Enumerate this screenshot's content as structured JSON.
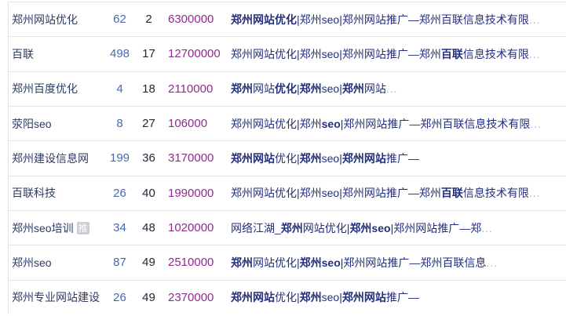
{
  "badge_label": "推",
  "colors": {
    "keyword_text": "#2e3c63",
    "metric1_blue": "#4868b1",
    "metric2_dark": "#26263c",
    "metric3_purple": "#8f2b8f",
    "title_link_navy": "#232f7d",
    "ellipsis_dim": "#aab1c5",
    "separator": "#e3e3e7",
    "badge_bg": "#cbced4"
  },
  "rows": [
    {
      "keyword": "郑州网站优化",
      "badge": false,
      "m1": "62",
      "m2": "2",
      "m3": "6300000",
      "title": [
        {
          "t": "郑州网站优化",
          "s": "b"
        },
        {
          "t": "|郑州seo|郑州网站推广—郑州百联信息技术有限",
          "s": "n"
        },
        {
          "t": "...",
          "s": "d"
        }
      ]
    },
    {
      "keyword": "百联",
      "badge": false,
      "m1": "498",
      "m2": "17",
      "m3": "12700000",
      "title": [
        {
          "t": "郑州网站优化|郑州seo|郑州网站推广—郑州",
          "s": "n"
        },
        {
          "t": "百联",
          "s": "b"
        },
        {
          "t": "信息技术有限",
          "s": "n"
        },
        {
          "t": "...",
          "s": "d"
        }
      ]
    },
    {
      "keyword": "郑州百度优化",
      "badge": false,
      "m1": "4",
      "m2": "18",
      "m3": "2110000",
      "title": [
        {
          "t": "郑州",
          "s": "b"
        },
        {
          "t": "网站",
          "s": "n"
        },
        {
          "t": "优化",
          "s": "b"
        },
        {
          "t": "|",
          "s": "n"
        },
        {
          "t": "郑州",
          "s": "b"
        },
        {
          "t": "seo|",
          "s": "n"
        },
        {
          "t": "郑州",
          "s": "b"
        },
        {
          "t": "网站",
          "s": "n"
        },
        {
          "t": "...",
          "s": "d"
        }
      ]
    },
    {
      "keyword": "荥阳seo",
      "badge": false,
      "m1": "8",
      "m2": "27",
      "m3": "106000",
      "title": [
        {
          "t": "郑州网站优化|郑州",
          "s": "n"
        },
        {
          "t": "seo",
          "s": "b"
        },
        {
          "t": "|郑州网站推广—郑州百联信息技术有限",
          "s": "n"
        },
        {
          "t": "...",
          "s": "d"
        }
      ]
    },
    {
      "keyword": "郑州建设信息网",
      "badge": false,
      "m1": "199",
      "m2": "36",
      "m3": "3170000",
      "title": [
        {
          "t": "郑州网站",
          "s": "b"
        },
        {
          "t": "优化|",
          "s": "n"
        },
        {
          "t": "郑州",
          "s": "b"
        },
        {
          "t": "seo|",
          "s": "n"
        },
        {
          "t": "郑州网站",
          "s": "b"
        },
        {
          "t": "推广—",
          "s": "n"
        }
      ]
    },
    {
      "keyword": "百联科技",
      "badge": false,
      "m1": "26",
      "m2": "40",
      "m3": "1990000",
      "title": [
        {
          "t": "郑州网站优化|郑州seo|郑州网站推广—郑州",
          "s": "n"
        },
        {
          "t": "百联",
          "s": "b"
        },
        {
          "t": "信息技术有限",
          "s": "n"
        },
        {
          "t": "...",
          "s": "d"
        }
      ]
    },
    {
      "keyword": "郑州seo培训",
      "badge": true,
      "m1": "34",
      "m2": "48",
      "m3": "1020000",
      "title": [
        {
          "t": "网络江湖_",
          "s": "n"
        },
        {
          "t": "郑州",
          "s": "b"
        },
        {
          "t": "网站优化|",
          "s": "n"
        },
        {
          "t": "郑州seo",
          "s": "b"
        },
        {
          "t": "|郑州网站推广—郑",
          "s": "n"
        },
        {
          "t": "...",
          "s": "d"
        }
      ]
    },
    {
      "keyword": "郑州seo",
      "badge": false,
      "m1": "87",
      "m2": "49",
      "m3": "2510000",
      "title": [
        {
          "t": "郑州",
          "s": "b"
        },
        {
          "t": "网站优化|",
          "s": "n"
        },
        {
          "t": "郑州seo",
          "s": "b"
        },
        {
          "t": "|郑州网站推广—郑州百联信息",
          "s": "n"
        },
        {
          "t": "...",
          "s": "d"
        }
      ]
    },
    {
      "keyword": "郑州专业网站建设",
      "badge": false,
      "m1": "26",
      "m2": "49",
      "m3": "2370000",
      "title": [
        {
          "t": "郑州网站",
          "s": "b"
        },
        {
          "t": "优化|",
          "s": "n"
        },
        {
          "t": "郑州",
          "s": "b"
        },
        {
          "t": "seo|",
          "s": "n"
        },
        {
          "t": "郑州网站",
          "s": "b"
        },
        {
          "t": "推广—",
          "s": "n"
        }
      ]
    }
  ]
}
